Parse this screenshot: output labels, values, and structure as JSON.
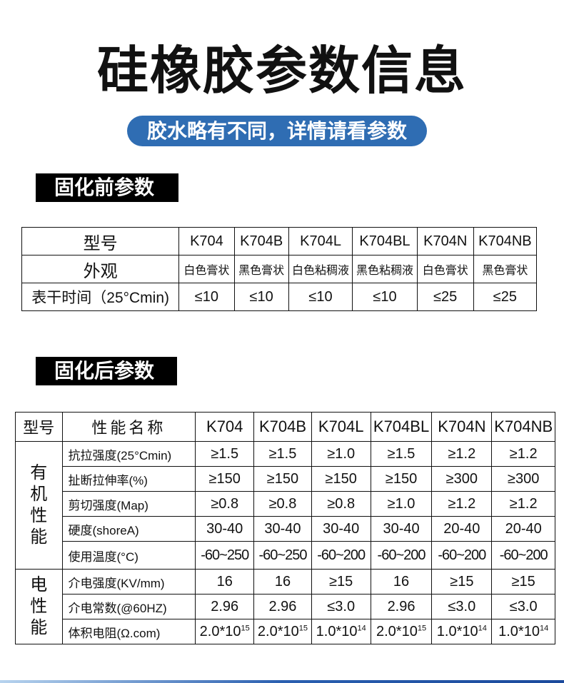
{
  "title": "硅橡胶参数信息",
  "subtitle": "胶水略有不同，详情请看参数",
  "before": {
    "label": "固化前参数",
    "models_header": "型号",
    "models": [
      "K704",
      "K704B",
      "K704L",
      "K704BL",
      "K704N",
      "K704NB"
    ],
    "rows": [
      {
        "name": "外观",
        "values": [
          "白色膏状",
          "黑色膏状",
          "白色粘稠液",
          "黑色粘稠液",
          "白色膏状",
          "黑色膏状"
        ]
      },
      {
        "name": "表干时间（25°Cmin)",
        "values": [
          "≤10",
          "≤10",
          "≤10",
          "≤10",
          "≤25",
          "≤25"
        ]
      }
    ]
  },
  "after": {
    "label": "固化后参数",
    "col1": "型号",
    "col2": "性能名称",
    "models": [
      "K704",
      "K704B",
      "K704L",
      "K704BL",
      "K704N",
      "K704NB"
    ],
    "groups": [
      {
        "name": "有机性能",
        "rows": [
          {
            "name": "抗拉强度(25°Cmin)",
            "values": [
              "≥1.5",
              "≥1.5",
              "≥1.0",
              "≥1.5",
              "≥1.2",
              "≥1.2"
            ]
          },
          {
            "name": "扯断拉伸率(%)",
            "values": [
              "≥150",
              "≥150",
              "≥150",
              "≥150",
              "≥300",
              "≥300"
            ]
          },
          {
            "name": "剪切强度(Map)",
            "values": [
              "≥0.8",
              "≥0.8",
              "≥0.8",
              "≥1.0",
              "≥1.2",
              "≥1.2"
            ]
          },
          {
            "name": "硬度(shoreA)",
            "values": [
              "30-40",
              "30-40",
              "30-40",
              "30-40",
              "20-40",
              "20-40"
            ]
          },
          {
            "name": "使用温度(°C)",
            "values": [
              "-60~250",
              "-60~250",
              "-60~200",
              "-60~200",
              "-60~200",
              "-60~200"
            ]
          }
        ]
      },
      {
        "name": "电性能",
        "rows": [
          {
            "name": "介电强度(KV/mm)",
            "values": [
              "16",
              "16",
              "≥15",
              "16",
              "≥15",
              "≥15"
            ]
          },
          {
            "name": "介电常数(@60HZ)",
            "values": [
              "2.96",
              "2.96",
              "≤3.0",
              "2.96",
              "≤3.0",
              "≤3.0"
            ]
          }
        ]
      }
    ],
    "resistivity": {
      "name": "体积电阻(Ω.com)",
      "values": [
        {
          "base": "2.0*10",
          "exp": "15"
        },
        {
          "base": "2.0*10",
          "exp": "15"
        },
        {
          "base": "1.0*10",
          "exp": "14"
        },
        {
          "base": "2.0*10",
          "exp": "15"
        },
        {
          "base": "1.0*10",
          "exp": "14"
        },
        {
          "base": "1.0*10",
          "exp": "14"
        }
      ]
    }
  },
  "colors": {
    "accent": "#2f6db3",
    "label_bg": "#000000"
  }
}
